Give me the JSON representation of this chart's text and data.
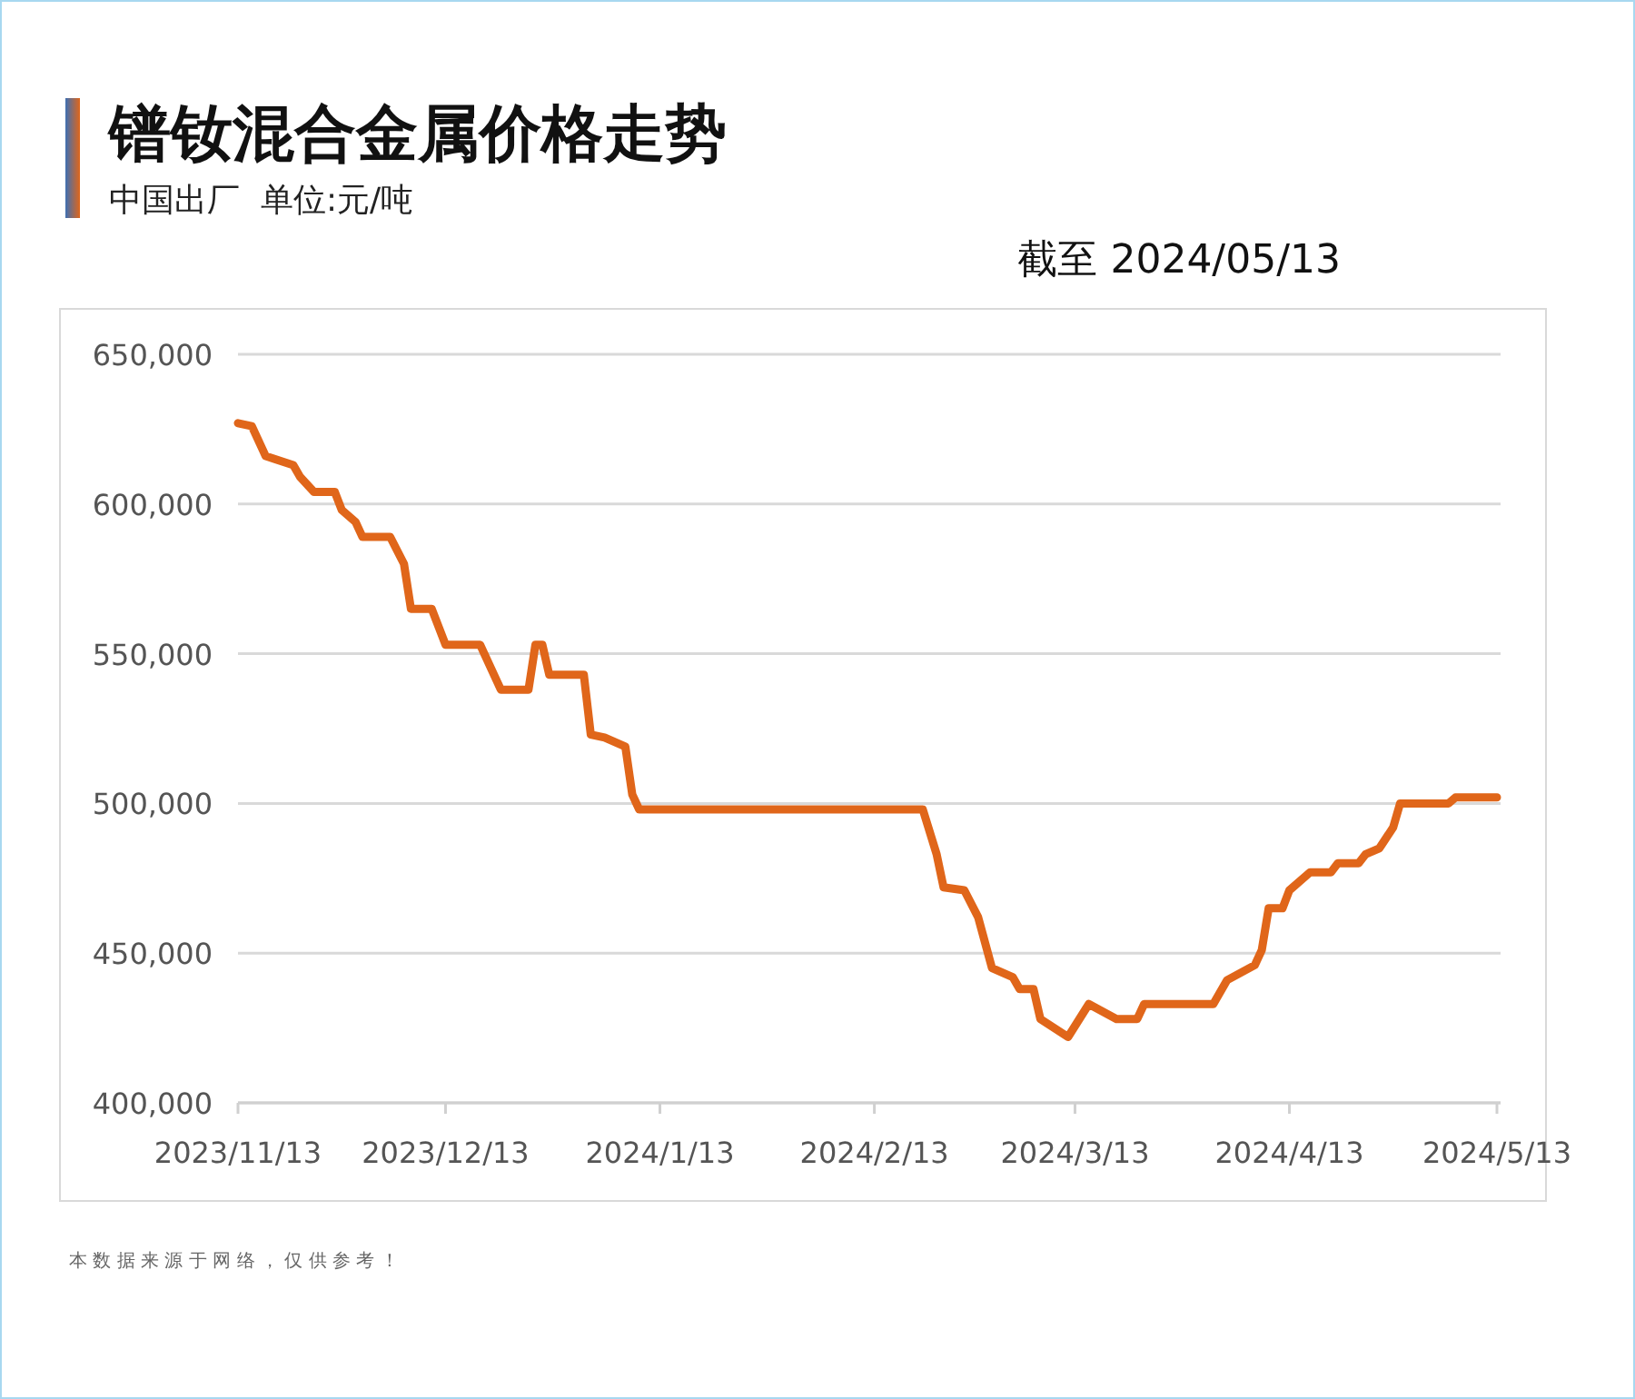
{
  "chart_data": {
    "type": "line",
    "title": "镨钕混合金属价格走势",
    "subtitle": "中国出厂  单位:元/吨",
    "annotations": [
      "截至 2024/05/13",
      "本 数 据 来 源 于 网 络 ， 仅 供 参 考 ！"
    ],
    "x": [
      "2023-11-13",
      "2023-11-15",
      "2023-11-17",
      "2023-11-21",
      "2023-11-22",
      "2023-11-24",
      "2023-11-27",
      "2023-11-28",
      "2023-11-30",
      "2023-12-01",
      "2023-12-05",
      "2023-12-07",
      "2023-12-08",
      "2023-12-11",
      "2023-12-13",
      "2023-12-18",
      "2023-12-21",
      "2023-12-25",
      "2023-12-26",
      "2023-12-27",
      "2023-12-28",
      "2024-01-02",
      "2024-01-03",
      "2024-01-05",
      "2024-01-08",
      "2024-01-09",
      "2024-01-10",
      "2024-02-20",
      "2024-02-22",
      "2024-02-23",
      "2024-02-26",
      "2024-02-28",
      "2024-03-01",
      "2024-03-04",
      "2024-03-05",
      "2024-03-07",
      "2024-03-08",
      "2024-03-12",
      "2024-03-15",
      "2024-03-19",
      "2024-03-22",
      "2024-03-23",
      "2024-04-02",
      "2024-04-04",
      "2024-04-08",
      "2024-04-09",
      "2024-04-10",
      "2024-04-12",
      "2024-04-13",
      "2024-04-16",
      "2024-04-19",
      "2024-04-20",
      "2024-04-23",
      "2024-04-24",
      "2024-04-26",
      "2024-04-28",
      "2024-04-29",
      "2024-05-06",
      "2024-05-07",
      "2024-05-13"
    ],
    "series": [
      {
        "color": "#e0661a",
        "values": [
          627000,
          626000,
          616000,
          613000,
          609000,
          604000,
          604000,
          598000,
          594000,
          589000,
          589000,
          580000,
          565000,
          565000,
          553000,
          553000,
          538000,
          538000,
          553000,
          553000,
          543000,
          543000,
          523000,
          522000,
          519000,
          503000,
          498000,
          498000,
          483000,
          472000,
          471000,
          462000,
          445000,
          442000,
          438000,
          438000,
          428000,
          422000,
          433000,
          428000,
          428000,
          433000,
          433000,
          441000,
          446000,
          451000,
          465000,
          465000,
          471000,
          477000,
          477000,
          480000,
          480000,
          483000,
          485000,
          492000,
          500000,
          500000,
          502000,
          502000
        ]
      }
    ],
    "xlim": [
      "2023-11-13",
      "2024-05-13"
    ],
    "xticks": [
      {
        "value": "2023-11-13",
        "label": "2023/11/13"
      },
      {
        "value": "2023-12-13",
        "label": "2023/12/13"
      },
      {
        "value": "2024-01-13",
        "label": "2024/1/13"
      },
      {
        "value": "2024-02-13",
        "label": "2024/2/13"
      },
      {
        "value": "2024-03-13",
        "label": "2024/3/13"
      },
      {
        "value": "2024-04-13",
        "label": "2024/4/13"
      },
      {
        "value": "2024-05-13",
        "label": "2024/5/13"
      }
    ],
    "ylim": [
      400000,
      650000
    ],
    "yticks": [
      {
        "value": 400000,
        "label": "400,000"
      },
      {
        "value": 450000,
        "label": "450,000"
      },
      {
        "value": 500000,
        "label": "500,000"
      },
      {
        "value": 550000,
        "label": "550,000"
      },
      {
        "value": 600000,
        "label": "600,000"
      },
      {
        "value": 650000,
        "label": "650,000"
      }
    ],
    "grid": "y",
    "marker": "none",
    "line_style": "solid"
  }
}
